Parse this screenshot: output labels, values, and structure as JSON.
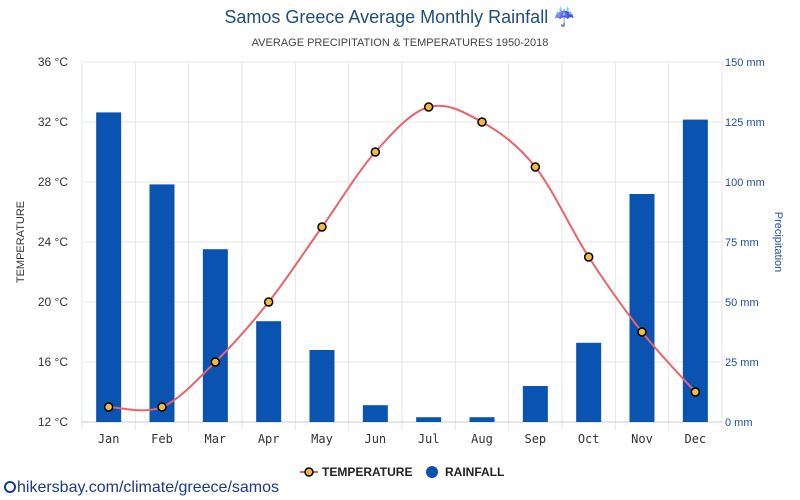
{
  "chart_data": {
    "type": "bar",
    "title": "Samos Greece Average Monthly Rainfall",
    "title_icon": "☔",
    "subtitle": "AVERAGE PRECIPITATION & TEMPERATURES 1950-2018",
    "categories": [
      "Jan",
      "Feb",
      "Mar",
      "Apr",
      "May",
      "Jun",
      "Jul",
      "Aug",
      "Sep",
      "Oct",
      "Nov",
      "Dec"
    ],
    "series": [
      {
        "name": "TEMPERATURE",
        "kind": "line",
        "axis": "left",
        "color": "#e8636b",
        "marker_color": "#f4b942",
        "values": [
          13,
          13,
          16,
          20,
          25,
          30,
          33,
          32,
          29,
          23,
          18,
          14
        ]
      },
      {
        "name": "RAINFALL",
        "kind": "bar",
        "axis": "right",
        "color": "#0b53b0",
        "values": [
          129,
          99,
          72,
          42,
          30,
          7,
          2,
          2,
          15,
          33,
          95,
          126
        ]
      }
    ],
    "y_left": {
      "label": "TEMPERATURE",
      "min": 12,
      "max": 36,
      "step": 4,
      "unit": "°C",
      "ticks": [
        "12 °C",
        "16 °C",
        "20 °C",
        "24 °C",
        "28 °C",
        "32 °C",
        "36 °C"
      ]
    },
    "y_right": {
      "label": "Precipitation",
      "min": 0,
      "max": 150,
      "step": 25,
      "unit": "mm",
      "ticks": [
        "0 mm",
        "25 mm",
        "50 mm",
        "75 mm",
        "100 mm",
        "125 mm",
        "150 mm"
      ]
    },
    "grid": true,
    "legend": {
      "position": "bottom-center"
    }
  },
  "source": {
    "text": "hikersbay.com/climate/greece/samos"
  }
}
